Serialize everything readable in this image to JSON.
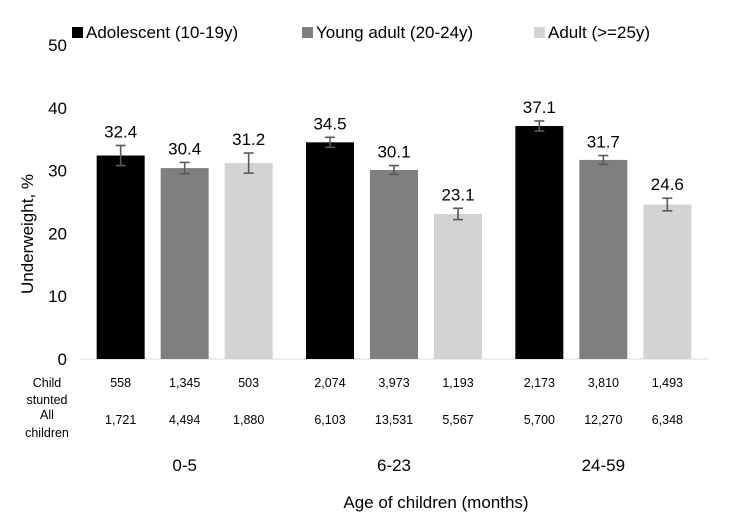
{
  "chart_data": {
    "type": "bar",
    "title": "",
    "xlabel": "Age of children (months)",
    "ylabel": "Underweight, %",
    "ylim": [
      0,
      50
    ],
    "yticks": [
      "0",
      "10",
      "20",
      "30",
      "40",
      "50"
    ],
    "grid": false,
    "legend": "top",
    "categories": [
      "0-5",
      "6-23",
      "24-59"
    ],
    "series": [
      {
        "name": "Adolescent (10-19y)",
        "color": "#000000",
        "values": [
          32.4,
          34.5,
          37.1
        ],
        "labels": [
          "32.4",
          "34.5",
          "37.1"
        ],
        "error_low": [
          30.8,
          33.7,
          36.3
        ],
        "error_high": [
          34.0,
          35.3,
          37.9
        ],
        "child_stunted": [
          "558",
          "2,074",
          "2,173"
        ],
        "all_children": [
          "1,721",
          "6,103",
          "5,700"
        ]
      },
      {
        "name": "Young adult (20-24y)",
        "color": "#7f7f7f",
        "values": [
          30.4,
          30.1,
          31.7
        ],
        "labels": [
          "30.4",
          "30.1",
          "31.7"
        ],
        "error_low": [
          29.5,
          29.4,
          31.0
        ],
        "error_high": [
          31.3,
          30.8,
          32.4
        ],
        "child_stunted": [
          "1,345",
          "3,973",
          "3,810"
        ],
        "all_children": [
          "4,494",
          "13,531",
          "12,270"
        ]
      },
      {
        "name": "Adult (>=25y)",
        "color": "#d3d3d3",
        "values": [
          31.2,
          23.1,
          24.6
        ],
        "labels": [
          "31.2",
          "23.1",
          "24.6"
        ],
        "error_low": [
          29.6,
          22.2,
          23.6
        ],
        "error_high": [
          32.8,
          24.0,
          25.6
        ],
        "child_stunted": [
          "503",
          "1,193",
          "1,493"
        ],
        "all_children": [
          "1,880",
          "5,567",
          "6,348"
        ]
      }
    ],
    "table_rows": {
      "child_stunted_label": [
        "Child",
        "stunted"
      ],
      "all_children_label": [
        "All",
        "children"
      ]
    }
  }
}
